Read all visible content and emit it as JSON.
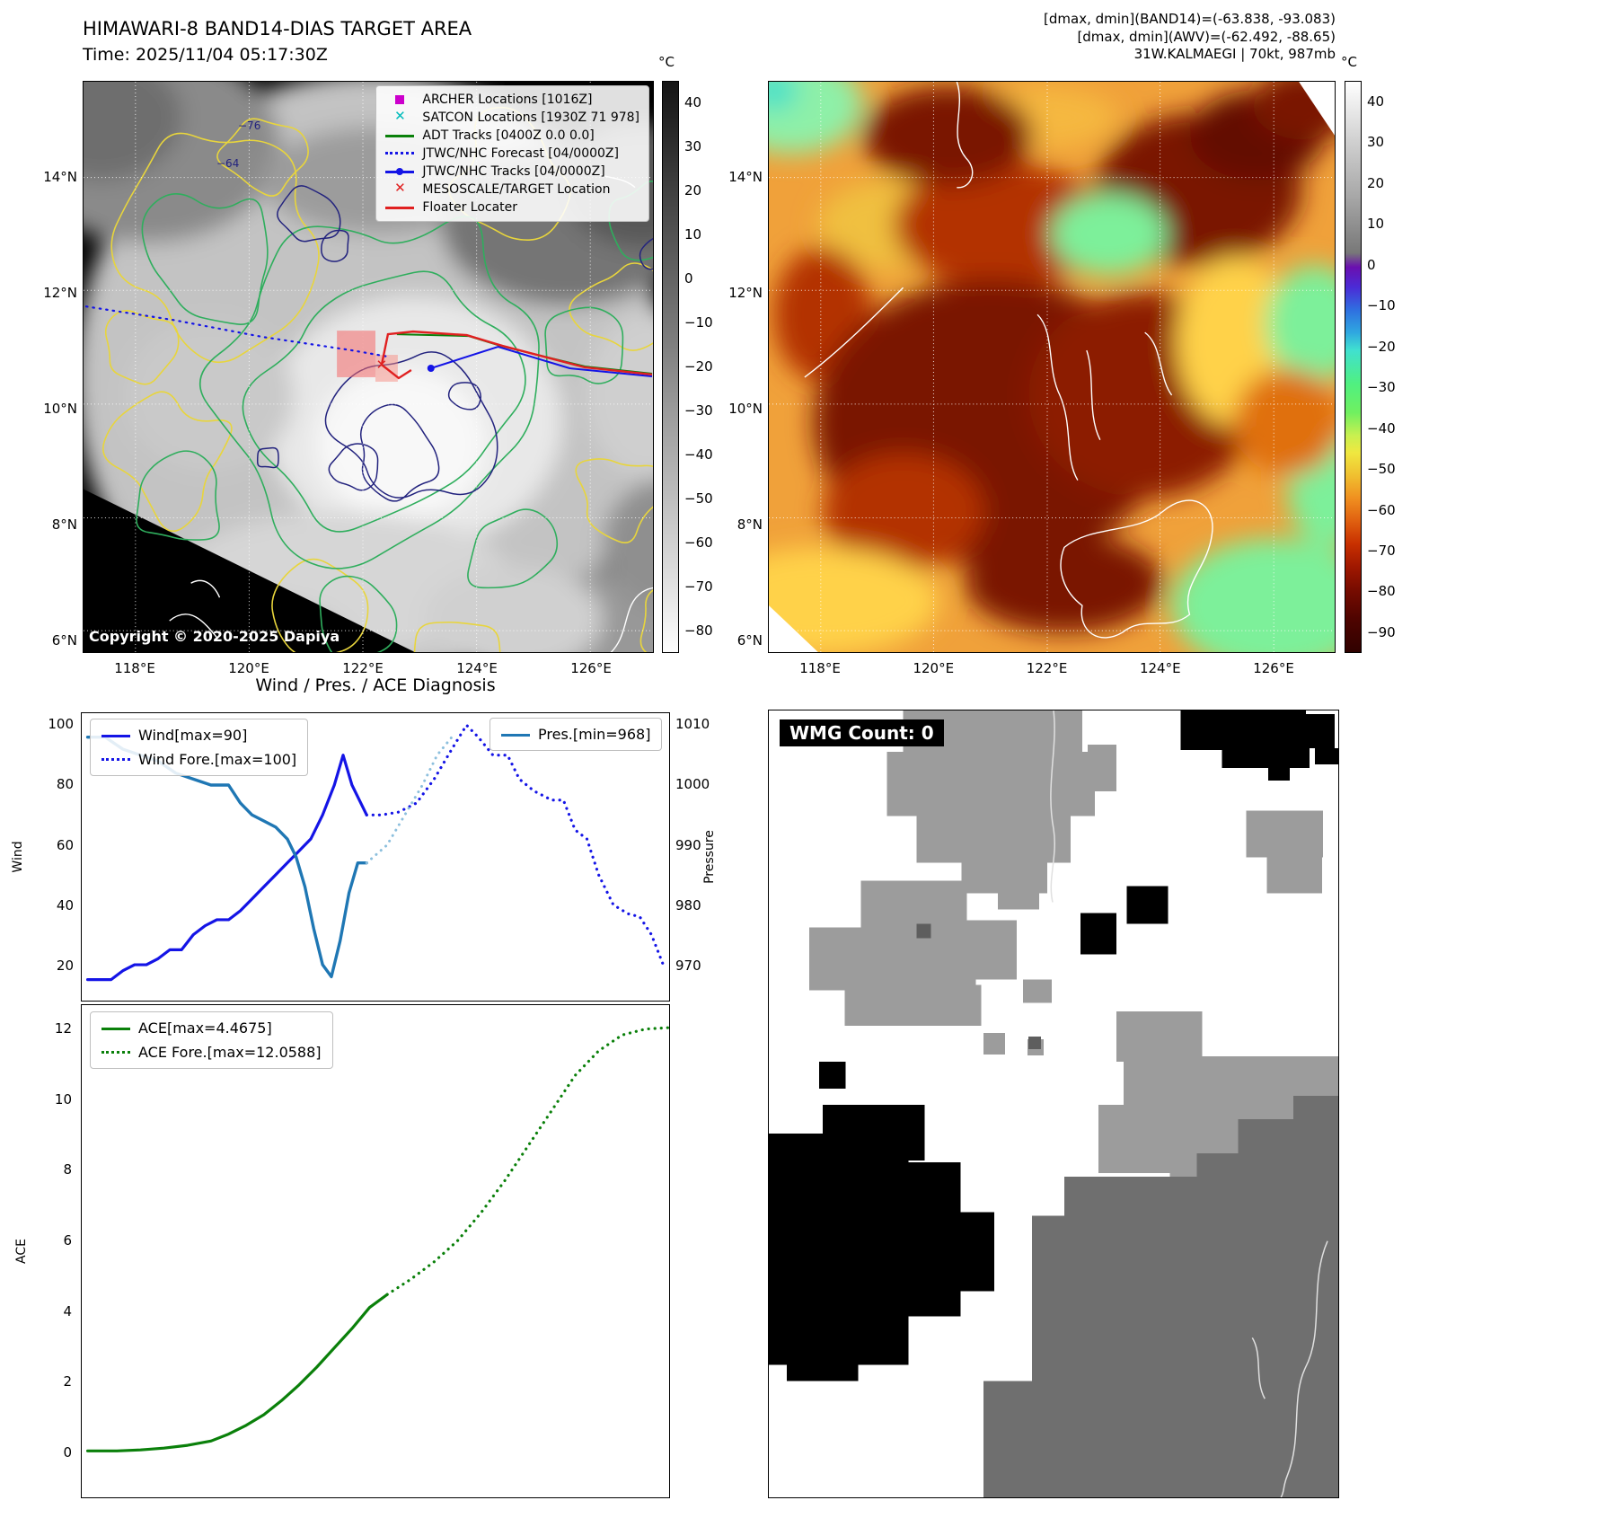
{
  "panel1": {
    "title": "HIMAWARI-8 BAND14-DIAS TARGET AREA",
    "subtitle": "Time: 2025/11/04 05:17:30Z",
    "copyright": "Copyright © 2020-2025 Dapiya",
    "colorbar": {
      "unit": "°C",
      "ticks": [
        "40",
        "30",
        "20",
        "10",
        "0",
        "−10",
        "−20",
        "−30",
        "−40",
        "−50",
        "−60",
        "−70",
        "−80"
      ]
    },
    "lat_ticks": [
      "14°N",
      "12°N",
      "10°N",
      "8°N",
      "6°N"
    ],
    "lon_ticks": [
      "118°E",
      "120°E",
      "122°E",
      "124°E",
      "126°E"
    ],
    "contour_labels": [
      "−76",
      "−64"
    ],
    "legend": [
      {
        "label": "ARCHER Locations [1016Z]",
        "marker": "square",
        "color": "#cc00cc"
      },
      {
        "label": "SATCON Locations [1930Z 71 978]",
        "marker": "x",
        "color": "#00bbbb"
      },
      {
        "label": "ADT Tracks [0400Z 0.0 0.0]",
        "marker": "line",
        "color": "#0a800a"
      },
      {
        "label": "JTWC/NHC Forecast [04/0000Z]",
        "marker": "dotted",
        "color": "#1414e6"
      },
      {
        "label": "JTWC/NHC Tracks [04/0000Z]",
        "marker": "line-dot",
        "color": "#1414e6"
      },
      {
        "label": "MESOSCALE/TARGET Location",
        "marker": "x",
        "color": "#e02020"
      },
      {
        "label": "Floater Locater",
        "marker": "line",
        "color": "#e02020"
      }
    ]
  },
  "panel2": {
    "header_lines": [
      "[dmax, dmin](BAND14)=(-63.838, -93.083)",
      "[dmax, dmin](AWV)=(-62.492, -88.65)",
      "31W.KALMAEGI | 70kt, 987mb"
    ],
    "colorbar": {
      "unit": "°C",
      "ticks": [
        "40",
        "30",
        "20",
        "10",
        "0",
        "−10",
        "−20",
        "−30",
        "−40",
        "−50",
        "−60",
        "−70",
        "−80",
        "−90"
      ]
    },
    "lat_ticks": [
      "14°N",
      "12°N",
      "10°N",
      "8°N",
      "6°N"
    ],
    "lon_ticks": [
      "118°E",
      "120°E",
      "122°E",
      "124°E",
      "126°E"
    ]
  },
  "diagnosis": {
    "title": "Wind / Pres. / ACE Diagnosis",
    "wind_axis_label": "Wind",
    "pressure_axis_label": "Pressure",
    "ace_axis_label": "ACE",
    "wind_ticks": [
      "100",
      "80",
      "60",
      "40",
      "20"
    ],
    "pressure_ticks": [
      "1010",
      "1000",
      "990",
      "980",
      "970"
    ],
    "ace_ticks": [
      "12",
      "10",
      "8",
      "6",
      "4",
      "2",
      "0"
    ],
    "legend_wind": [
      {
        "label": "Wind[max=90]",
        "marker": "line",
        "color": "#1414e6"
      },
      {
        "label": "Wind Fore.[max=100]",
        "marker": "dotted",
        "color": "#1414e6"
      }
    ],
    "legend_pres": [
      {
        "label": "Pres.[min=968]",
        "marker": "line",
        "color": "#1f77b4"
      }
    ],
    "legend_ace": [
      {
        "label": "ACE[max=4.4675]",
        "marker": "line",
        "color": "#0a800a"
      },
      {
        "label": "ACE Fore.[max=12.0588]",
        "marker": "dotted",
        "color": "#0a800a"
      }
    ]
  },
  "wmg": {
    "count_label": "WMG Count: 0"
  },
  "chart_data": [
    {
      "type": "line",
      "title": "Wind / Pres. / ACE Diagnosis (wind & pressure)",
      "xlim": [
        0,
        100
      ],
      "ylim_left": [
        8,
        104
      ],
      "ylim_right": [
        964,
        1012
      ],
      "ylabel_left": "Wind",
      "ylabel_right": "Pressure",
      "grid": false,
      "legend_position": "upper left / upper right",
      "series": [
        {
          "name": "Wind[max=90]",
          "axis": "left",
          "style": "solid",
          "color": "#1414e6",
          "width": 3.2,
          "x": [
            1,
            3,
            5,
            7,
            9,
            11,
            13,
            15,
            17,
            19,
            21,
            23,
            25,
            27,
            29,
            31,
            33,
            35,
            37,
            39,
            41,
            43,
            44.5,
            46,
            48.5
          ],
          "y": [
            15,
            15,
            15,
            18,
            20,
            20,
            22,
            25,
            25,
            30,
            33,
            35,
            35,
            38,
            42,
            46,
            50,
            54,
            58,
            62,
            70,
            80,
            90,
            80,
            70
          ]
        },
        {
          "name": "Wind Fore.[max=100]",
          "axis": "left",
          "style": "dotted",
          "color": "#1414e6",
          "width": 3.2,
          "x": [
            48.5,
            51,
            54,
            57,
            60,
            63,
            65.5,
            67.5,
            70,
            72.5,
            74.5,
            77,
            80,
            82,
            84,
            86,
            88,
            90.5,
            93,
            95,
            97,
            99
          ],
          "y": [
            70,
            70,
            71,
            74,
            82,
            92,
            100,
            96,
            90,
            90,
            82,
            78,
            75,
            75,
            65,
            62,
            50,
            40,
            37,
            36,
            30,
            20
          ]
        },
        {
          "name": "Pres.[min=968]",
          "axis": "right",
          "style": "solid",
          "color": "#1f77b4",
          "width": 3.4,
          "x": [
            1,
            4,
            7,
            10,
            13,
            16,
            19,
            22,
            25,
            27,
            29,
            31,
            33,
            35,
            36.5,
            38,
            39.5,
            41,
            42.5,
            44,
            45.5,
            47,
            48.5
          ],
          "y": [
            1008,
            1008,
            1006,
            1005,
            1004,
            1002,
            1001,
            1000,
            1000,
            997,
            995,
            994,
            993,
            991,
            988,
            983,
            976,
            970,
            968,
            974,
            982,
            987,
            987
          ]
        },
        {
          "name": "Pres. Fore.",
          "axis": "right",
          "style": "dotted",
          "color": "#8cbfdd",
          "width": 3,
          "x": [
            48.5,
            52,
            55,
            58,
            60.5,
            63
          ],
          "y": [
            987,
            990,
            995,
            1000,
            1005,
            1008
          ]
        }
      ]
    },
    {
      "type": "line",
      "title": "ACE accumulation",
      "xlim": [
        0,
        100
      ],
      "ylim_left": [
        -1.3,
        12.7
      ],
      "ylabel_left": "ACE",
      "grid": false,
      "series": [
        {
          "name": "ACE[max=4.4675]",
          "axis": "left",
          "style": "solid",
          "color": "#0a800a",
          "width": 3.2,
          "x": [
            1,
            6,
            10,
            14,
            18,
            22,
            25,
            28,
            31,
            34,
            37,
            40,
            43,
            46,
            49,
            52
          ],
          "y": [
            0.02,
            0.02,
            0.05,
            0.1,
            0.18,
            0.3,
            0.5,
            0.75,
            1.05,
            1.45,
            1.9,
            2.4,
            2.95,
            3.5,
            4.1,
            4.4675
          ]
        },
        {
          "name": "ACE Fore.[max=12.0588]",
          "axis": "left",
          "style": "dotted",
          "color": "#0a800a",
          "width": 3.2,
          "x": [
            52,
            56,
            60,
            64,
            68,
            72,
            76,
            80,
            84,
            88,
            92,
            96,
            100
          ],
          "y": [
            4.4675,
            4.9,
            5.4,
            6.0,
            6.8,
            7.7,
            8.7,
            9.7,
            10.7,
            11.4,
            11.85,
            12.02,
            12.0588
          ]
        }
      ]
    }
  ]
}
